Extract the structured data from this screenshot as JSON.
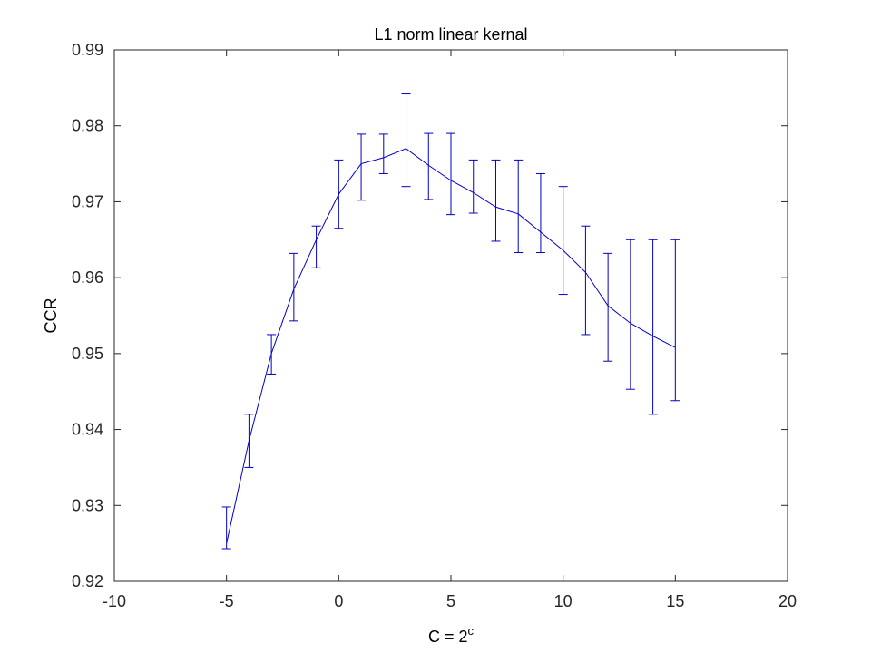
{
  "chart_data": {
    "type": "line",
    "title": "L1 norm linear kernal",
    "xlabel_base": "C = 2",
    "xlabel_superscript": "c",
    "ylabel": "CCR",
    "xlim": [
      -10,
      20
    ],
    "ylim": [
      0.92,
      0.99
    ],
    "xticks": [
      -10,
      -5,
      0,
      5,
      10,
      15,
      20
    ],
    "xtick_labels": [
      "-10",
      "-5",
      "0",
      "5",
      "10",
      "15",
      "20"
    ],
    "yticks": [
      0.92,
      0.93,
      0.94,
      0.95,
      0.96,
      0.97,
      0.98,
      0.99
    ],
    "ytick_labels": [
      "0.92",
      "0.93",
      "0.94",
      "0.95",
      "0.96",
      "0.97",
      "0.98",
      "0.99"
    ],
    "grid": false,
    "series": [
      {
        "color": "#0000c8",
        "x": [
          -5,
          -4,
          -3,
          -2,
          -1,
          0,
          1,
          2,
          3,
          4,
          5,
          6,
          7,
          8,
          9,
          10,
          11,
          12,
          13,
          14,
          15
        ],
        "y": [
          0.925,
          0.9385,
          0.95,
          0.9585,
          0.965,
          0.971,
          0.975,
          0.9758,
          0.977,
          0.9748,
          0.9728,
          0.9712,
          0.9693,
          0.9684,
          0.966,
          0.9636,
          0.9607,
          0.9563,
          0.954,
          0.9523,
          0.9508
        ],
        "err_low": [
          0.9243,
          0.935,
          0.9473,
          0.9543,
          0.9613,
          0.9665,
          0.9702,
          0.9737,
          0.972,
          0.9703,
          0.9683,
          0.9685,
          0.9648,
          0.9633,
          0.9633,
          0.9578,
          0.9525,
          0.949,
          0.9453,
          0.942,
          0.9438
        ],
        "err_high": [
          0.9298,
          0.942,
          0.9525,
          0.9632,
          0.9668,
          0.9755,
          0.9789,
          0.9789,
          0.9842,
          0.979,
          0.979,
          0.9755,
          0.9755,
          0.9755,
          0.9737,
          0.972,
          0.9668,
          0.9632,
          0.965,
          0.965,
          0.965
        ]
      }
    ]
  }
}
